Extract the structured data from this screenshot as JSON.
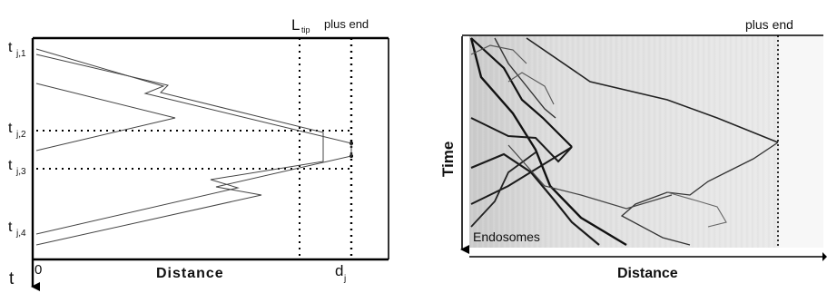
{
  "left_panel": {
    "time_axis_label": "t",
    "distance_label": "Distance",
    "origin_label": "0",
    "ltip_label": "L",
    "ltip_subscript": "tip",
    "plus_end_label": "plus end",
    "dj_label": "d",
    "dj_subscript": "j",
    "time_markers": [
      {
        "base": "t",
        "sub": "j,1"
      },
      {
        "base": "t",
        "sub": "j,2"
      },
      {
        "base": "t",
        "sub": "j,3"
      },
      {
        "base": "t",
        "sub": "j,4"
      }
    ]
  },
  "right_panel": {
    "plus_end_label": "plus end",
    "time_label": "Time",
    "distance_label": "Distance",
    "kymograph_label": "Endosomes"
  }
}
